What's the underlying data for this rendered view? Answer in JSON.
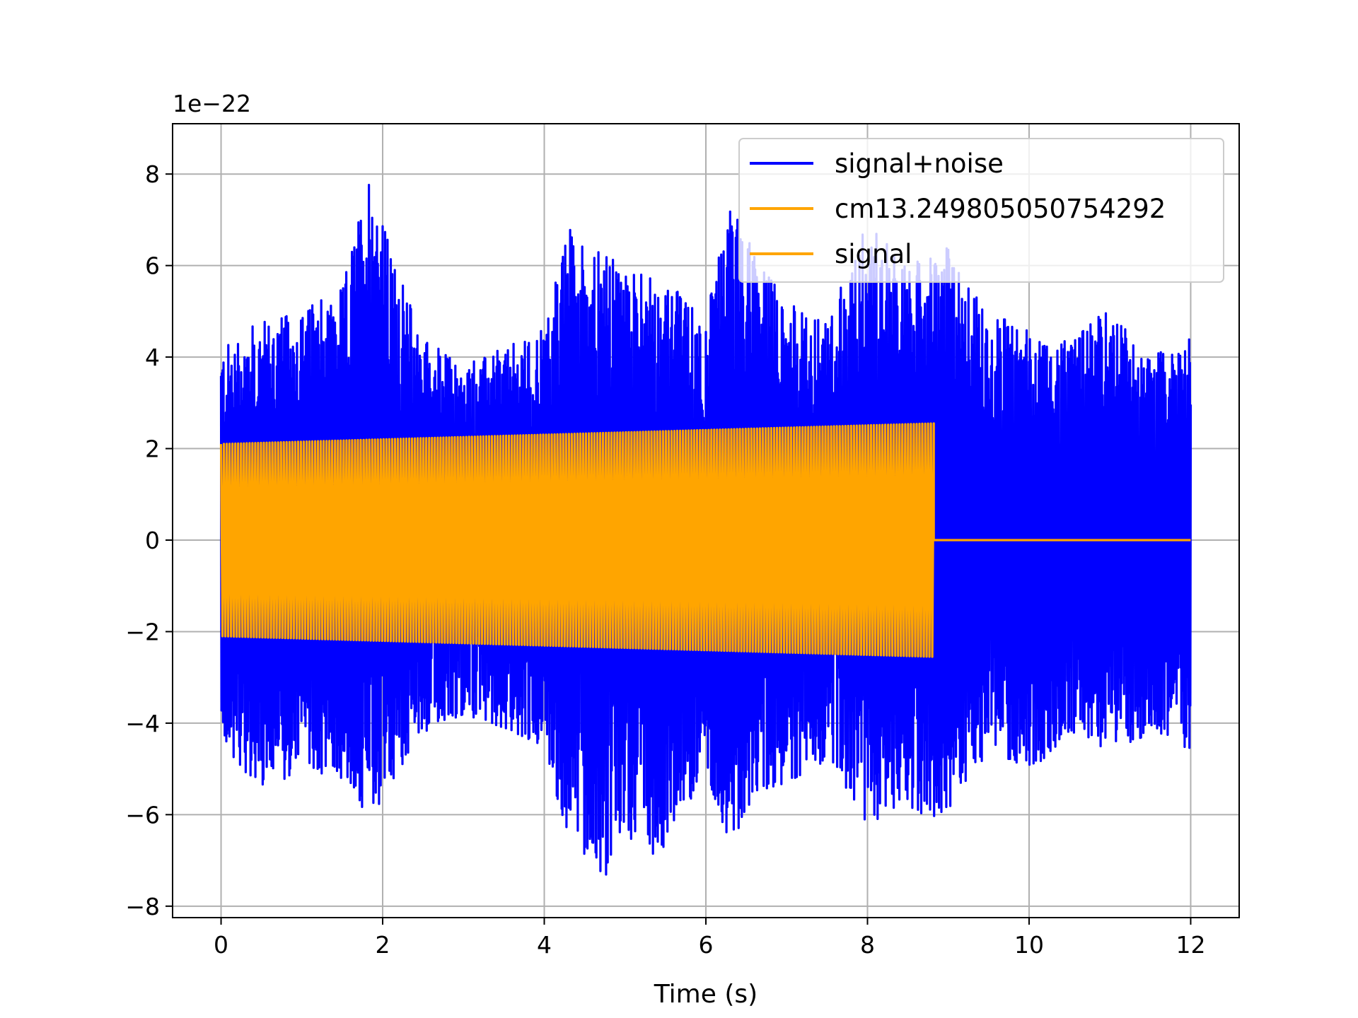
{
  "chart_data": {
    "type": "line",
    "xlabel": "Time (s)",
    "ylabel": "",
    "offset_text": "1e−22",
    "xlim": [
      -0.6,
      12.6
    ],
    "ylim": [
      -8.25,
      9.1
    ],
    "x_ticks": [
      0,
      2,
      4,
      6,
      8,
      10,
      12
    ],
    "y_ticks": [
      -8,
      -6,
      -4,
      -2,
      0,
      2,
      4,
      6,
      8
    ],
    "y_tick_labels": [
      "−8",
      "−6",
      "−4",
      "−2",
      "0",
      "2",
      "4",
      "6",
      "8"
    ],
    "grid": true,
    "legend_position": "top-right",
    "series": [
      {
        "name": "signal+noise",
        "color": "#0000ff",
        "x_range": [
          0,
          12
        ],
        "envelope_max": [
          [
            0,
            4.2
          ],
          [
            0.5,
            4.8
          ],
          [
            1.0,
            5.0
          ],
          [
            1.5,
            5.5
          ],
          [
            1.85,
            8.3
          ],
          [
            2.1,
            6.3
          ],
          [
            2.5,
            4.5
          ],
          [
            3.0,
            3.8
          ],
          [
            3.5,
            4.2
          ],
          [
            4.0,
            4.6
          ],
          [
            4.3,
            6.8
          ],
          [
            4.8,
            6.2
          ],
          [
            5.2,
            5.8
          ],
          [
            5.6,
            5.5
          ],
          [
            6.0,
            4.9
          ],
          [
            6.3,
            7.4
          ],
          [
            6.6,
            6.4
          ],
          [
            7.0,
            5.2
          ],
          [
            7.5,
            4.7
          ],
          [
            8.0,
            7.1
          ],
          [
            8.5,
            6.0
          ],
          [
            9.0,
            6.4
          ],
          [
            9.5,
            4.9
          ],
          [
            10.0,
            4.7
          ],
          [
            10.5,
            4.3
          ],
          [
            11.0,
            5.1
          ],
          [
            11.5,
            4.0
          ],
          [
            12.0,
            4.4
          ]
        ],
        "envelope_min": [
          [
            0,
            -4.4
          ],
          [
            0.5,
            -5.5
          ],
          [
            1.0,
            -5.0
          ],
          [
            1.5,
            -5.2
          ],
          [
            1.85,
            -6.1
          ],
          [
            2.1,
            -5.3
          ],
          [
            2.5,
            -4.2
          ],
          [
            3.0,
            -3.8
          ],
          [
            3.5,
            -4.1
          ],
          [
            4.0,
            -4.5
          ],
          [
            4.3,
            -6.6
          ],
          [
            4.8,
            -7.4
          ],
          [
            5.2,
            -6.2
          ],
          [
            5.4,
            -7.1
          ],
          [
            6.0,
            -5.0
          ],
          [
            6.3,
            -6.8
          ],
          [
            6.6,
            -5.5
          ],
          [
            7.0,
            -5.3
          ],
          [
            7.5,
            -4.8
          ],
          [
            8.0,
            -6.2
          ],
          [
            8.5,
            -5.8
          ],
          [
            8.9,
            -6.2
          ],
          [
            9.5,
            -4.6
          ],
          [
            10.0,
            -5.0
          ],
          [
            10.5,
            -4.4
          ],
          [
            11.0,
            -4.7
          ],
          [
            11.5,
            -4.2
          ],
          [
            12.0,
            -4.6
          ]
        ]
      },
      {
        "name": "cm13.249805050754292",
        "color": "#ffa500",
        "x_range": [
          0,
          8.82
        ],
        "amplitude_start": 2.1,
        "amplitude_end": 2.55,
        "value_after_end": 0
      },
      {
        "name": "signal",
        "color": "#ffa500",
        "x_range": [
          0,
          12
        ],
        "amplitude_start": 2.1,
        "amplitude_end": 2.55,
        "signal_end": 8.82,
        "value_after_end": 0
      }
    ]
  }
}
